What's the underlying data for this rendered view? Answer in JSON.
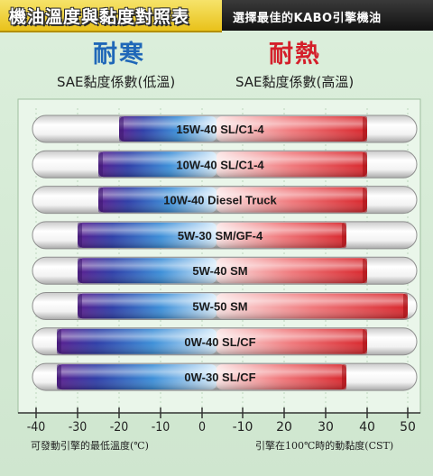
{
  "header": {
    "title": "機油溫度與黏度對照表",
    "subtitle": "選擇最佳的KABO引擎機油"
  },
  "labels": {
    "cold": "耐寒",
    "hot": "耐熱",
    "cold_sub": "SAE黏度係數(低溫)",
    "hot_sub": "SAE黏度係數(高溫)",
    "x_left": "可發動引擎的最低溫度(℃)",
    "x_right": "引擎在100℃時的動黏度(CST)"
  },
  "colors": {
    "cold": "#1f67b8",
    "hot": "#d41f2a",
    "header_bg": "#f0d23a"
  },
  "chart_data": {
    "type": "range-bar",
    "left_axis": {
      "label": "可發動引擎的最低溫度(℃)",
      "ticks": [
        -40,
        -30,
        -20,
        -10,
        0
      ]
    },
    "right_axis": {
      "label": "引擎在100℃時的動黏度(CST)",
      "ticks": [
        -10,
        20,
        30,
        40,
        50
      ]
    },
    "grades": [
      {
        "name": "15W-40  SL/C1-4",
        "min_temp": -20,
        "max_cst": 40
      },
      {
        "name": "10W-40  SL/C1-4",
        "min_temp": -25,
        "max_cst": 40
      },
      {
        "name": "10W-40  Diesel Truck",
        "min_temp": -25,
        "max_cst": 40
      },
      {
        "name": "5W-30  SM/GF-4",
        "min_temp": -30,
        "max_cst": 35
      },
      {
        "name": "5W-40  SM",
        "min_temp": -30,
        "max_cst": 40
      },
      {
        "name": "5W-50  SM",
        "min_temp": -30,
        "max_cst": 50
      },
      {
        "name": "0W-40  SL/CF",
        "min_temp": -35,
        "max_cst": 40
      },
      {
        "name": "0W-30  SL/CF",
        "min_temp": -35,
        "max_cst": 35
      }
    ]
  }
}
